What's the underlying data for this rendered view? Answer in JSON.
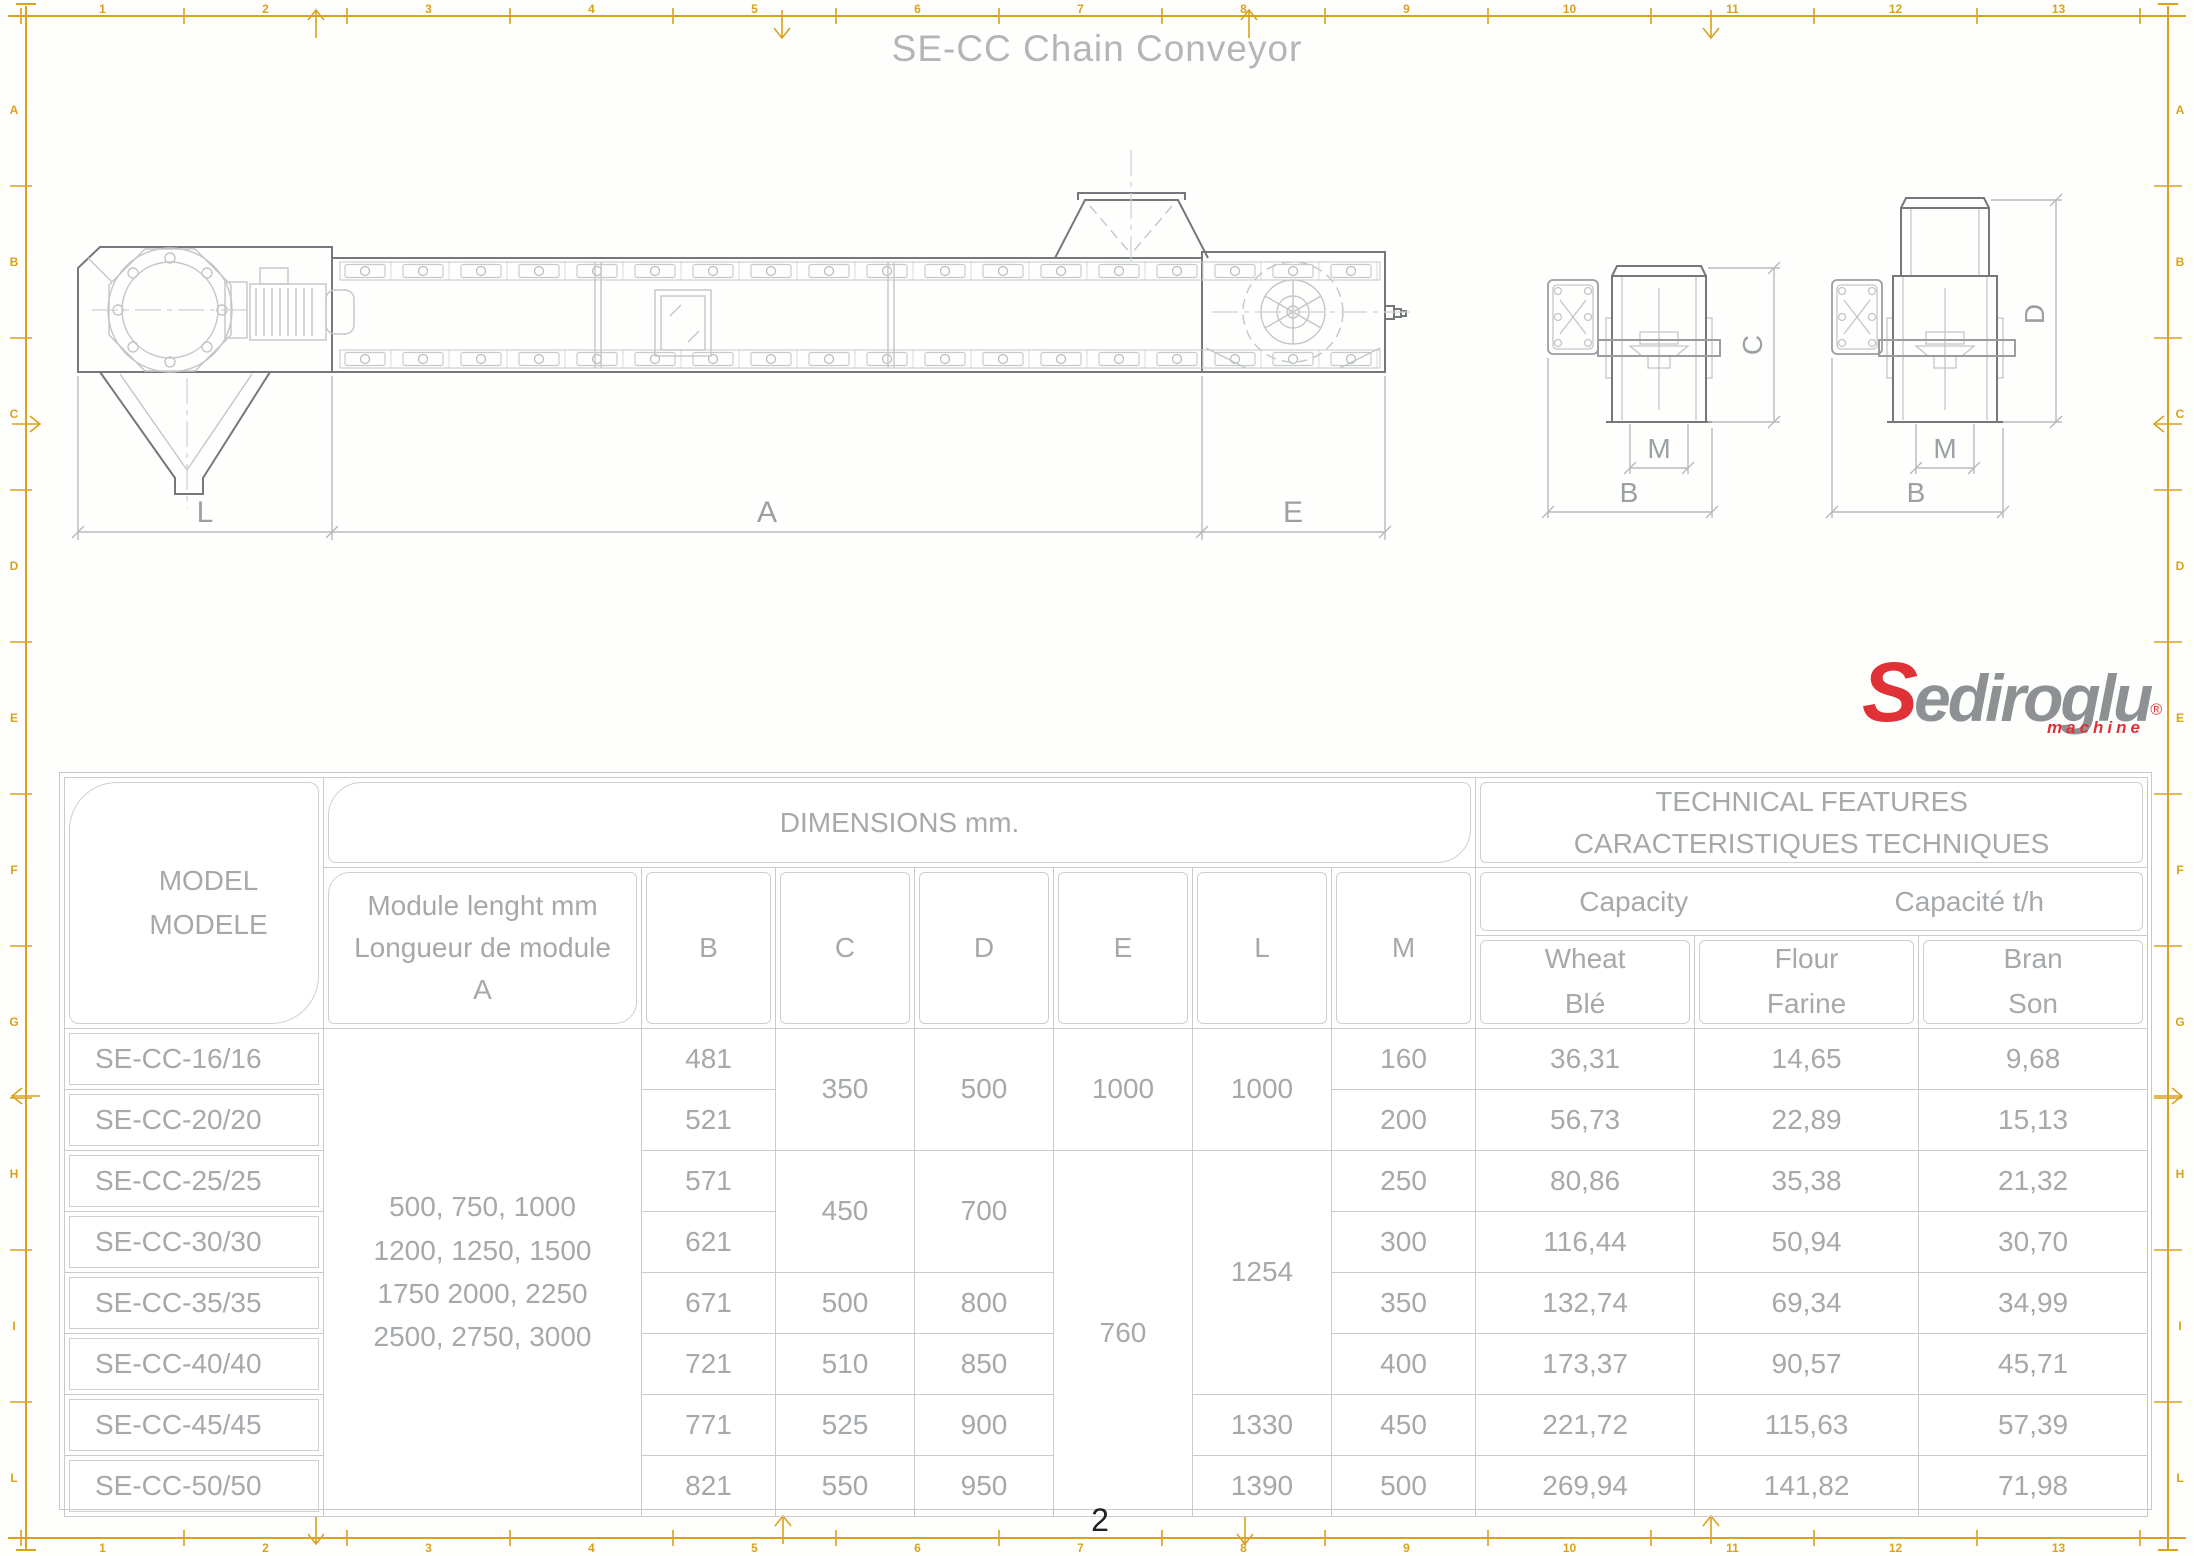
{
  "title": "SE-CC Chain Conveyor",
  "page_number": "2",
  "frame": {
    "color": "#D8A21B",
    "ruler_numbers": [
      "1",
      "2",
      "3",
      "4",
      "5",
      "6",
      "7",
      "8",
      "9",
      "10",
      "11",
      "12",
      "13"
    ],
    "row_letters": [
      "A",
      "B",
      "C",
      "D",
      "E",
      "F",
      "G",
      "H",
      "I",
      "L"
    ]
  },
  "logo": {
    "initial": "S",
    "name": "ediroglu",
    "registered": "®",
    "tagline": "machine",
    "red": "#E03236",
    "gray": "#8E9194"
  },
  "drawing": {
    "dims": {
      "length_left": "L",
      "length_main": "A",
      "length_right": "E",
      "height_view1": "C",
      "height_view2": "D",
      "m_view1": "M",
      "b_view1": "B",
      "m_view2": "M",
      "b_view2": "B"
    }
  },
  "table": {
    "header": {
      "model": [
        "MODEL",
        "MODELE"
      ],
      "dimensions": "DIMENSIONS mm.",
      "technical": [
        "TECHNICAL FEATURES",
        "CARACTERISTIQUES TECHNIQUES"
      ],
      "module": [
        "Module lenght  mm",
        "Longueur de module",
        "A"
      ],
      "columns": [
        "B",
        "C",
        "D",
        "E",
        "L",
        "M"
      ],
      "capacity": [
        "Capacity",
        "Capacité t/h"
      ],
      "products": {
        "wheat": [
          "Wheat",
          "Blé"
        ],
        "flour": [
          "Flour",
          "Farine"
        ],
        "bran": [
          "Bran",
          "Son"
        ]
      }
    },
    "body": {
      "models": [
        "SE-CC-16/16",
        "SE-CC-20/20",
        "SE-CC-25/25",
        "SE-CC-30/30",
        "SE-CC-35/35",
        "SE-CC-40/40",
        "SE-CC-45/45",
        "SE-CC-50/50"
      ],
      "module_a": [
        "500, 750, 1000",
        "1200, 1250, 1500",
        "1750 2000, 2250",
        "2500, 2750, 3000"
      ],
      "b": [
        "481",
        "521",
        "571",
        "621",
        "671",
        "721",
        "771",
        "821"
      ],
      "c": {
        "r1_2": "350",
        "r3_4": "450",
        "r5": "500",
        "r6": "510",
        "r7": "525",
        "r8": "550"
      },
      "d": {
        "r1_2": "500",
        "r3_4": "700",
        "r5": "800",
        "r6": "850",
        "r7": "900",
        "r8": "950"
      },
      "e": {
        "r1_2": "1000",
        "r3_8": "760"
      },
      "l": {
        "r1_2": "1000",
        "r3_6": "1254",
        "r7": "1330",
        "r8": "1390"
      },
      "m": [
        "160",
        "200",
        "250",
        "300",
        "350",
        "400",
        "450",
        "500"
      ],
      "wheat": [
        "36,31",
        "56,73",
        "80,86",
        "116,44",
        "132,74",
        "173,37",
        "221,72",
        "269,94"
      ],
      "flour": [
        "14,65",
        "22,89",
        "35,38",
        "50,94",
        "69,34",
        "90,57",
        "115,63",
        "141,82"
      ],
      "bran": [
        "9,68",
        "15,13",
        "21,32",
        "30,70",
        "34,99",
        "45,71",
        "57,39",
        "71,98"
      ]
    }
  }
}
